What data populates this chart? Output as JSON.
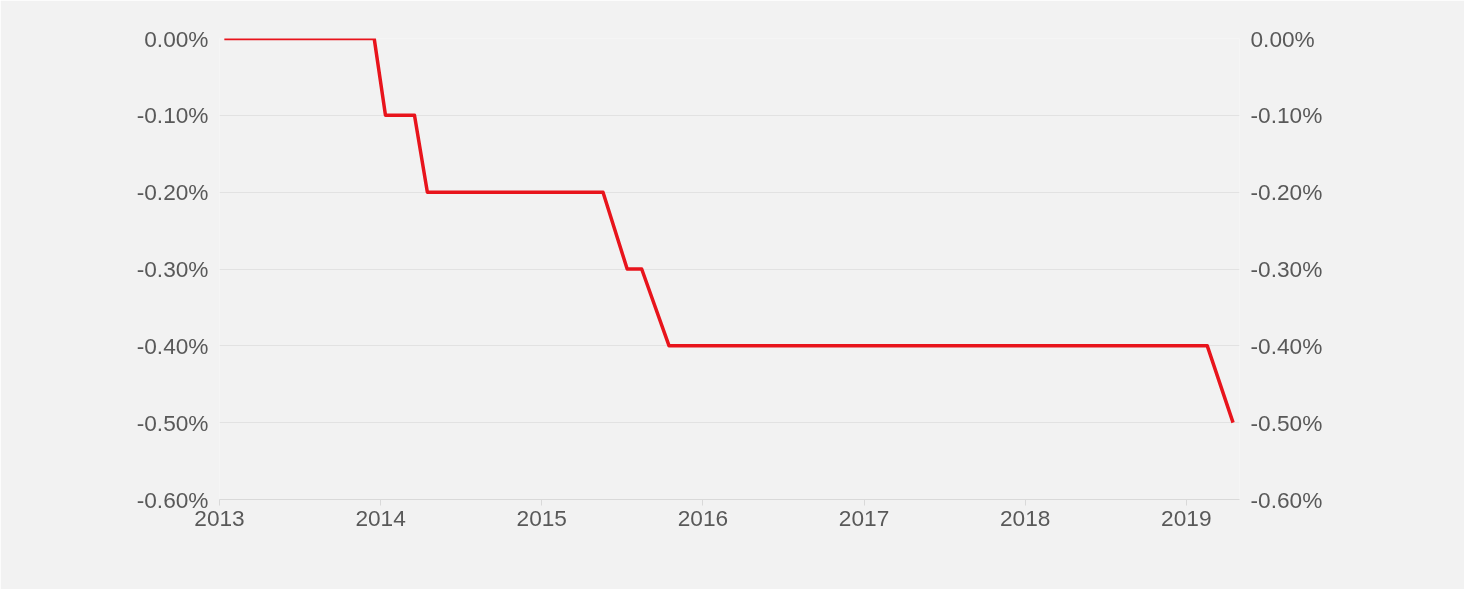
{
  "chart_data": {
    "type": "line",
    "x": [
      2013.03,
      2013.96,
      2014.03,
      2014.21,
      2014.29,
      2015.38,
      2015.53,
      2015.62,
      2015.79,
      2019.13,
      2019.29
    ],
    "series": [
      {
        "color": "#e8141c",
        "values": [
          0,
          0,
          -0.1,
          -0.1,
          -0.2,
          -0.2,
          -0.3,
          -0.3,
          -0.4,
          -0.4,
          -0.5
        ]
      }
    ],
    "xlim": [
      2013,
      2019.33
    ],
    "xticks": [
      2013,
      2014,
      2015,
      2016,
      2017,
      2018,
      2019
    ],
    "ylim": [
      -0.6,
      0
    ],
    "yticks": [
      {
        "value": -0.6,
        "label": "-0.60%"
      },
      {
        "value": -0.5,
        "label": "-0.50%"
      },
      {
        "value": -0.4,
        "label": "-0.40%"
      },
      {
        "value": -0.3,
        "label": "-0.30%"
      },
      {
        "value": -0.2,
        "label": "-0.20%"
      },
      {
        "value": -0.1,
        "label": "-0.10%"
      },
      {
        "value": 0,
        "label": "0.00%"
      }
    ],
    "y2lim": [
      -0.6,
      0
    ],
    "y2ticks": [
      {
        "value": -0.6,
        "label": "-0.60%"
      },
      {
        "value": -0.5,
        "label": "-0.50%"
      },
      {
        "value": -0.4,
        "label": "-0.40%"
      },
      {
        "value": -0.3,
        "label": "-0.30%"
      },
      {
        "value": -0.2,
        "label": "-0.20%"
      },
      {
        "value": -0.1,
        "label": "-0.10%"
      },
      {
        "value": 0,
        "label": "0.00%"
      }
    ],
    "grid": "y",
    "marker": "none",
    "line_style": "solid"
  }
}
